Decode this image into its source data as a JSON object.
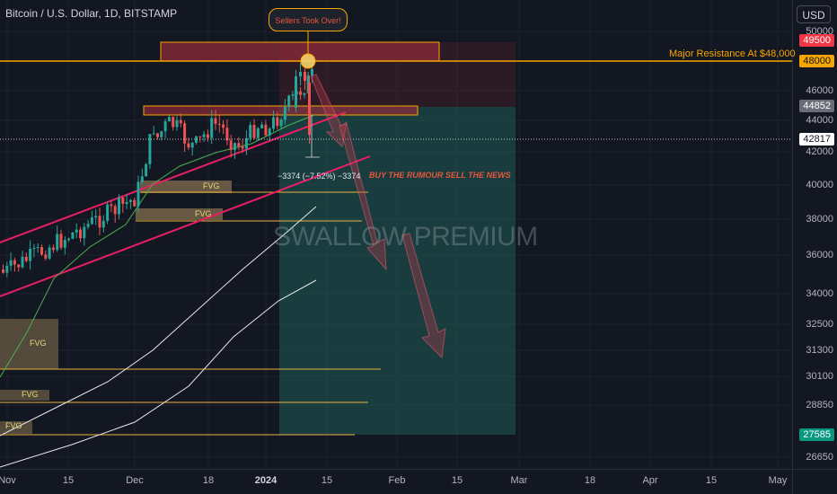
{
  "header": {
    "title": "Bitcoin / U.S. Dollar, 1D, BITSTAMP",
    "currency": "USD"
  },
  "price_axis": {
    "ticks": [
      "50000",
      "46000",
      "44000",
      "42000",
      "40000",
      "38000",
      "36000",
      "34000",
      "32500",
      "31300",
      "30100",
      "28850",
      "26650"
    ],
    "badges": {
      "upper": "49500",
      "resistance": "48000",
      "current_gray": "44852",
      "crosshair": "42817",
      "target": "27585"
    }
  },
  "time_axis": {
    "ticks": [
      "Nov",
      "15",
      "Dec",
      "18",
      "2024",
      "15",
      "Feb",
      "15",
      "Mar",
      "18",
      "Apr",
      "15",
      "May"
    ]
  },
  "annotations": {
    "resistance_label": "Major Resistance At $48,000",
    "callout": "Sellers Took Over!",
    "measure": "−3374 (−7.52%) −3374",
    "headline": "BUY THE RUMOUR SELL THE NEWS",
    "watermark": "SWALLOW PREMIUM",
    "fvg_labels": [
      "FVG",
      "FVG",
      "FVG",
      "FVG",
      "FVG"
    ]
  },
  "colors": {
    "background": "#131722",
    "up_candle": "#26a69a",
    "down_candle": "#ef5350",
    "resistance": "#f7a600",
    "channel": "#e91e63",
    "short_zone": "#1f5c57",
    "upper_badge": "#f23645",
    "target_badge": "#089981"
  }
}
